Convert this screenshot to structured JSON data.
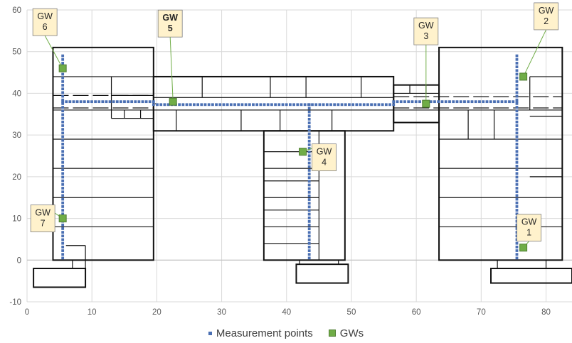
{
  "chart_data": {
    "type": "scatter",
    "xlim": [
      0,
      84
    ],
    "ylim": [
      -10,
      60
    ],
    "x_ticks": [
      0,
      10,
      20,
      30,
      40,
      50,
      60,
      70,
      80
    ],
    "y_ticks": [
      -10,
      0,
      10,
      20,
      30,
      40,
      50,
      60
    ],
    "grid": "major gridlines on both axes",
    "legend_position": "bottom",
    "series": [
      {
        "name": "Measurement points",
        "color": "#4a6fb3",
        "marker": "small square",
        "paths": [
          {
            "from": [
              5.5,
              0.5
            ],
            "to": [
              5.5,
              49
            ]
          },
          {
            "from": [
              5.5,
              38
            ],
            "to": [
              19.5,
              38
            ]
          },
          {
            "from": [
              19.5,
              37.3
            ],
            "to": [
              56.5,
              37.3
            ]
          },
          {
            "from": [
              43.5,
              37.3
            ],
            "to": [
              43.5,
              0.5
            ]
          },
          {
            "from": [
              56.5,
              38
            ],
            "to": [
              75.5,
              38
            ]
          },
          {
            "from": [
              75.5,
              49
            ],
            "to": [
              75.5,
              0.5
            ]
          }
        ]
      },
      {
        "name": "GWs",
        "color": "#70ad47",
        "marker": "square",
        "points": [
          {
            "label": "GW\n1",
            "x": 76.5,
            "y": 3
          },
          {
            "label": "GW\n2",
            "x": 76.5,
            "y": 44
          },
          {
            "label": "GW\n3",
            "x": 61.5,
            "y": 37.5
          },
          {
            "label": "GW\n4",
            "x": 42.5,
            "y": 26
          },
          {
            "label": "GW\n5",
            "x": 22.5,
            "y": 38
          },
          {
            "label": "GW\n6",
            "x": 5.5,
            "y": 46
          },
          {
            "label": "GW\n7",
            "x": 5.5,
            "y": 10
          }
        ]
      }
    ],
    "floor_plan": {
      "outline_boxes": [
        [
          4,
          0,
          19.5,
          51
        ],
        [
          19.5,
          31,
          56.5,
          44
        ],
        [
          36.5,
          0,
          49,
          31
        ],
        [
          56.5,
          33,
          63.5,
          42
        ],
        [
          63.5,
          0,
          82.5,
          51
        ],
        [
          1,
          -6.5,
          9,
          -2
        ],
        [
          41.5,
          -5.5,
          49.5,
          -1
        ],
        [
          71.5,
          -5.5,
          84,
          -2
        ]
      ],
      "walls": [
        [
          4,
          44,
          19.5,
          44
        ],
        [
          4,
          36,
          19.5,
          36
        ],
        [
          4,
          29,
          19.5,
          29
        ],
        [
          4,
          22,
          19.5,
          22
        ],
        [
          4,
          15,
          19.5,
          15
        ],
        [
          4,
          8,
          19.5,
          8
        ],
        [
          4,
          0,
          4,
          51
        ],
        [
          13,
          39.5,
          19.5,
          39.5
        ],
        [
          13,
          44,
          13,
          34
        ],
        [
          13,
          34,
          19.5,
          34
        ],
        [
          15,
          36,
          15,
          34
        ],
        [
          17.5,
          36,
          17.5,
          34
        ],
        [
          6,
          3.5,
          9,
          3.5
        ],
        [
          9,
          3.5,
          9,
          0
        ],
        [
          7,
          0,
          7,
          -2
        ],
        [
          9,
          0,
          9,
          -2
        ],
        [
          19.5,
          39,
          56.5,
          39
        ],
        [
          19.5,
          36,
          56.5,
          36
        ],
        [
          19.5,
          37.5,
          20,
          37.5
        ],
        [
          27,
          44,
          27,
          39
        ],
        [
          37.5,
          44,
          37.5,
          39
        ],
        [
          43,
          44,
          43,
          39
        ],
        [
          51.5,
          44,
          51.5,
          39
        ],
        [
          23,
          36,
          23,
          31
        ],
        [
          33,
          36,
          33,
          31
        ],
        [
          39,
          36,
          39,
          31
        ],
        [
          47,
          36,
          47,
          31
        ],
        [
          36.5,
          31,
          49,
          31
        ],
        [
          36.5,
          26,
          45,
          26
        ],
        [
          36.5,
          22,
          45,
          22
        ],
        [
          36.5,
          19,
          45,
          19
        ],
        [
          36.5,
          15,
          45,
          15
        ],
        [
          36.5,
          12,
          45,
          12
        ],
        [
          36.5,
          8,
          45,
          8
        ],
        [
          36.5,
          4,
          45,
          4
        ],
        [
          45,
          31,
          45,
          0
        ],
        [
          42,
          0,
          42,
          -1
        ],
        [
          48,
          0,
          48,
          -1
        ],
        [
          56.5,
          40,
          63.5,
          40
        ],
        [
          56.5,
          36,
          63.5,
          36
        ],
        [
          59,
          42,
          59,
          40
        ],
        [
          61.5,
          42,
          61.5,
          40
        ],
        [
          63.5,
          36,
          82.5,
          36
        ],
        [
          63.5,
          29,
          82.5,
          29
        ],
        [
          63.5,
          22,
          82.5,
          22
        ],
        [
          63.5,
          15,
          82.5,
          15
        ],
        [
          63.5,
          8,
          82.5,
          8
        ],
        [
          68,
          36,
          68,
          29
        ],
        [
          72,
          29,
          72,
          36
        ],
        [
          77.5,
          44,
          82.5,
          44
        ],
        [
          77.5,
          44,
          77.5,
          36
        ],
        [
          77.5,
          34.5,
          82.5,
          34.5
        ],
        [
          77.5,
          20,
          82.5,
          20
        ],
        [
          72.5,
          0,
          72.5,
          -2
        ],
        [
          80,
          0,
          80,
          -2
        ],
        [
          82.5,
          51,
          82.5,
          0
        ]
      ]
    }
  },
  "legend": {
    "measurement_label": "Measurement points",
    "gw_label": "GWs"
  }
}
